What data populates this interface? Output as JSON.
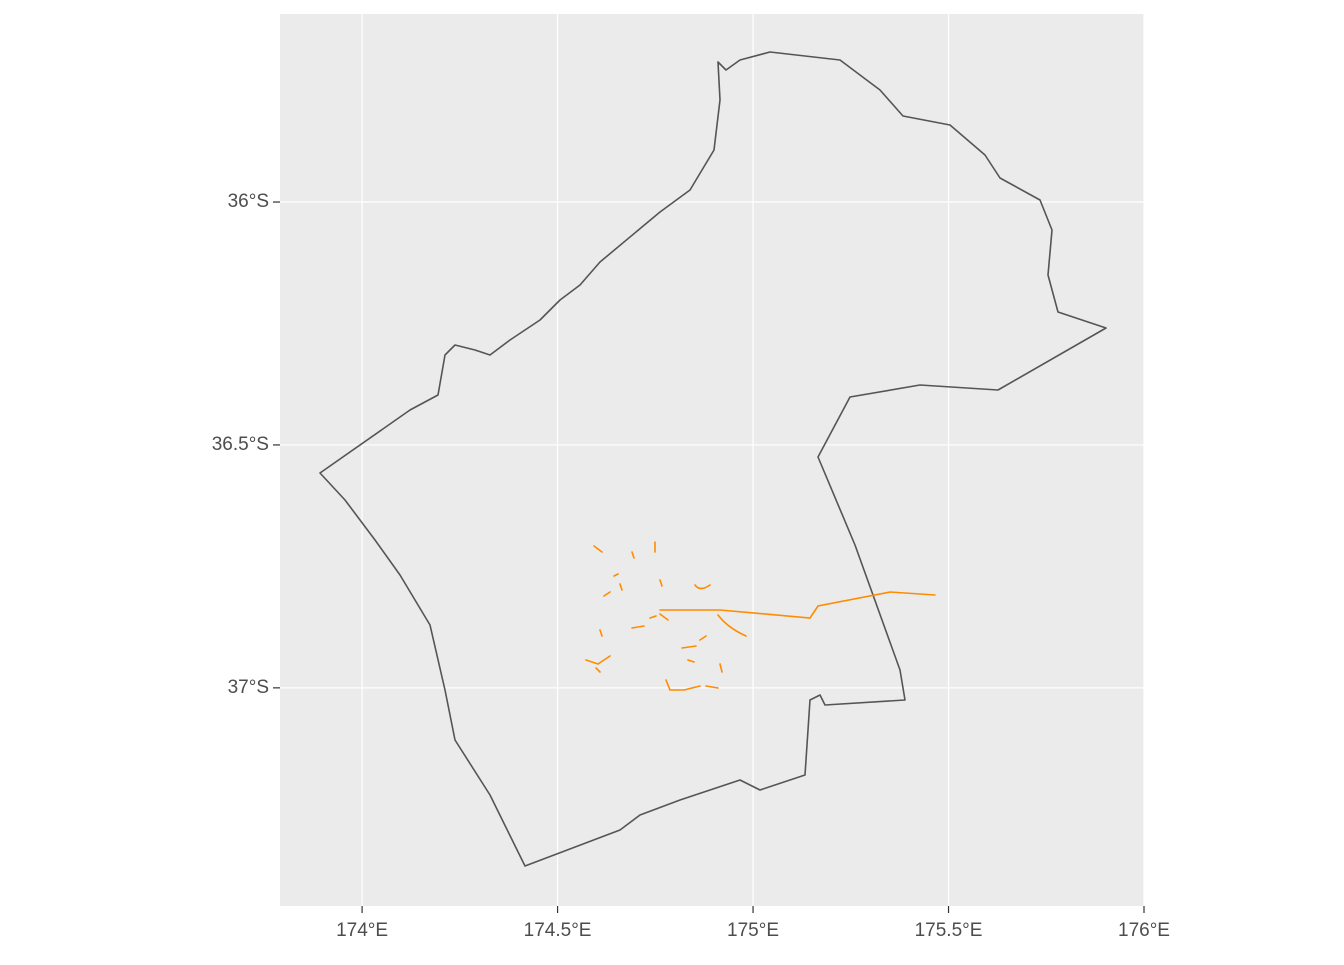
{
  "chart_data": {
    "type": "map",
    "xlim": [
      173.79,
      176.0
    ],
    "ylim": [
      -37.449,
      -35.613
    ],
    "xticks": [
      {
        "value": 174,
        "label": "174°E"
      },
      {
        "value": 174.5,
        "label": "174.5°E"
      },
      {
        "value": 175,
        "label": "175°E"
      },
      {
        "value": 175.5,
        "label": "175.5°E"
      },
      {
        "value": 176,
        "label": "176°E"
      }
    ],
    "yticks": [
      {
        "value": -36,
        "label": "36°S"
      },
      {
        "value": -36.5,
        "label": "36.5°S"
      },
      {
        "value": -37,
        "label": "37°S"
      }
    ],
    "grid": true
  }
}
